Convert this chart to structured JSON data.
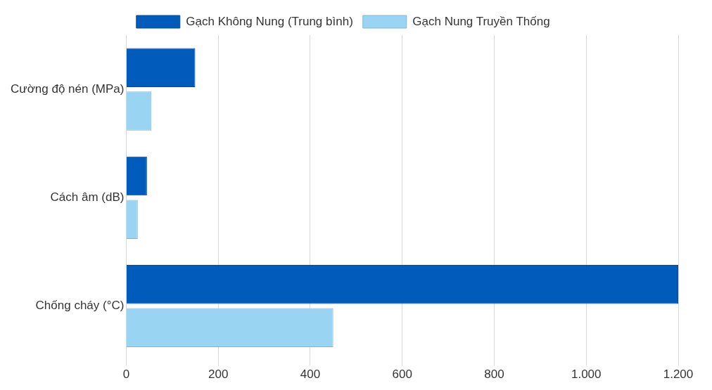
{
  "chart_data": {
    "type": "bar",
    "orientation": "horizontal",
    "categories": [
      "Cường độ nén (MPa)",
      "Cách âm (dB)",
      "Chống cháy (°C)"
    ],
    "series": [
      {
        "name": "Gạch Không Nung (Trung bình)",
        "color": "#005bbb",
        "values": [
          150,
          45,
          1200
        ]
      },
      {
        "name": "Gạch Nung Truyền Thống",
        "color": "#99d5f2",
        "values": [
          55,
          25,
          450
        ]
      }
    ],
    "xlim": [
      0,
      1200
    ],
    "xticks": [
      0,
      200,
      400,
      600,
      800,
      {
        "value": 1000,
        "label": "1.000"
      },
      {
        "value": 1200,
        "label": "1.200"
      }
    ],
    "grid": "x",
    "legend": "top"
  }
}
